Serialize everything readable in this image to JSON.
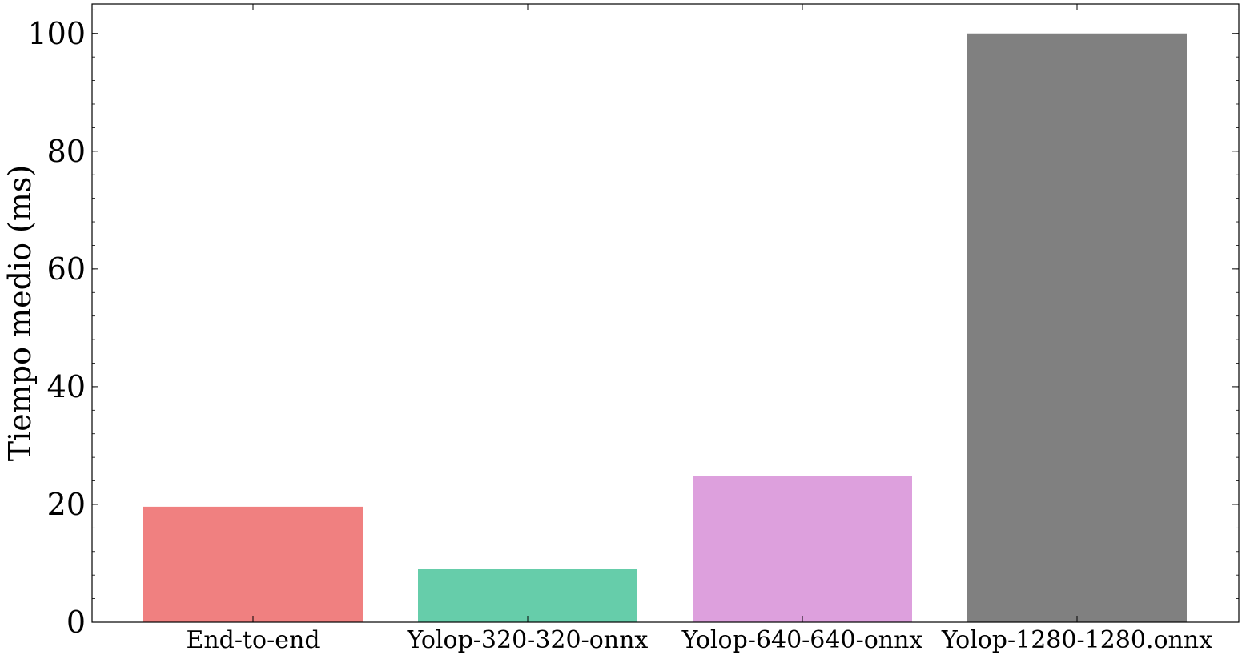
{
  "chart_data": {
    "type": "bar",
    "title": "",
    "xlabel": "",
    "ylabel": "Tiempo medio (ms)",
    "categories": [
      "End-to-end",
      "Yolop-320-320-onnx",
      "Yolop-640-640-onnx",
      "Yolop-1280-1280.onnx"
    ],
    "values": [
      19.6,
      9.1,
      24.8,
      100.0
    ],
    "colors": [
      "#f08080",
      "#66cdaa",
      "#dda0dd",
      "#808080"
    ],
    "ylim": [
      0,
      105
    ],
    "yticks": [
      0,
      20,
      40,
      60,
      80,
      100
    ],
    "yticks_minor_step": 4,
    "grid": false,
    "legend": "none"
  }
}
